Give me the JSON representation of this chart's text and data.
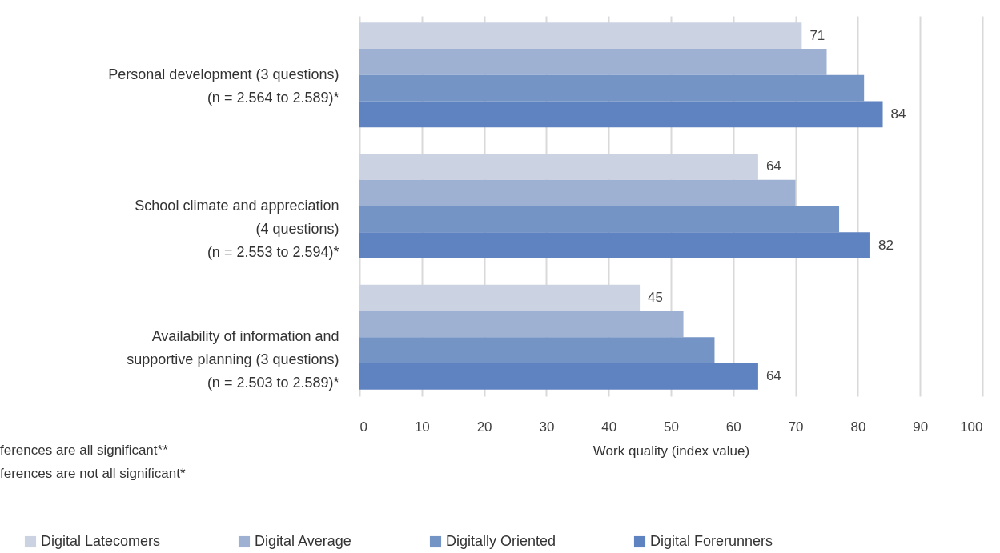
{
  "chart_data": {
    "type": "bar",
    "orientation": "horizontal",
    "xlabel": "Work quality (index value)",
    "categories": [
      "Personal development (3 questions)\n(n =  2.564 to 2.589)*",
      "School climate and appreciation\n(4 questions)\n(n = 2.553 to 2.594)*",
      "Availability of information and\nsupportive planning (3 questions)\n(n = 2.503 to 2.589)*"
    ],
    "series": [
      {
        "name": "Digital Latecomers",
        "color": "#cbd3e3",
        "values": [
          71,
          64,
          45
        ],
        "value_labels": [
          "71",
          "64",
          "45"
        ]
      },
      {
        "name": "Digital Average",
        "color": "#9fb1d2",
        "values": [
          75,
          70,
          52
        ]
      },
      {
        "name": "Digitally Oriented",
        "color": "#7494c6",
        "values": [
          81,
          77,
          57
        ]
      },
      {
        "name": "Digital Forerunners",
        "color": "#5f82c0",
        "values": [
          84,
          82,
          64
        ],
        "value_labels": [
          "84",
          "82",
          "64"
        ]
      }
    ],
    "xlim": [
      0,
      100
    ],
    "xticks": [
      0,
      10,
      20,
      30,
      40,
      50,
      60,
      70,
      80,
      90,
      100
    ],
    "grid": "x",
    "legend": "bottom",
    "annotations": [
      "ferences are all significant**",
      "ferences are not all significant*"
    ]
  }
}
